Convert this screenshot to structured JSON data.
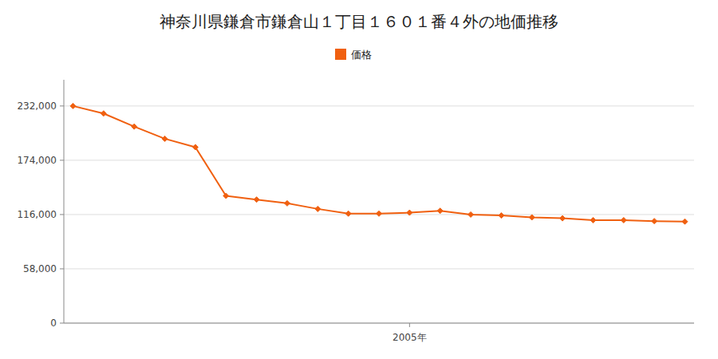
{
  "chart_data": {
    "type": "line",
    "title": "神奈川県鎌倉市鎌倉山１丁目１６０１番４外の地価推移",
    "x": [
      1994,
      1995,
      1996,
      1997,
      1998,
      1999,
      2000,
      2001,
      2002,
      2003,
      2004,
      2005,
      2006,
      2007,
      2008,
      2009,
      2010,
      2011,
      2012,
      2013,
      2014
    ],
    "series": [
      {
        "name": "価格",
        "color": "#f06010",
        "marker": "diamond",
        "values": [
          232000,
          224000,
          210000,
          197000,
          188000,
          136000,
          132000,
          128000,
          122000,
          117000,
          117000,
          118000,
          120000,
          116000,
          115000,
          113000,
          112000,
          110000,
          110000,
          109000,
          108500
        ]
      }
    ],
    "xlim": [
      1993.7,
      2014.3
    ],
    "xticks": [
      {
        "value": 2005,
        "label": "2005年"
      }
    ],
    "ylim": [
      0,
      260000
    ],
    "yticks": [
      0,
      {
        "value": 58000,
        "label": "58,000"
      },
      {
        "value": 116000,
        "label": "116,000"
      },
      {
        "value": 174000,
        "label": "174,000"
      },
      {
        "value": 232000,
        "label": "232,000"
      }
    ],
    "grid": true,
    "legend": "top"
  }
}
